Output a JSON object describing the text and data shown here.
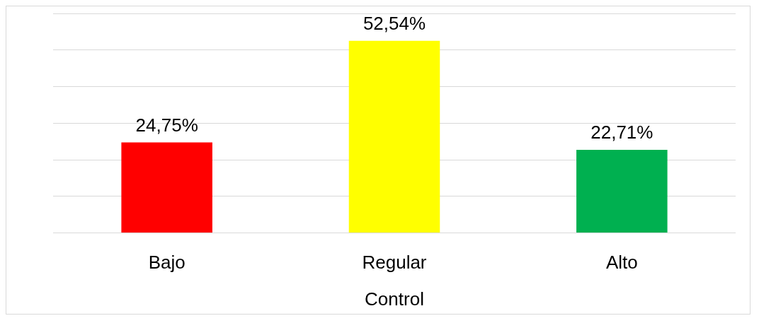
{
  "chart_data": {
    "type": "bar",
    "xlabel": "Control",
    "categories": [
      "Bajo",
      "Regular",
      "Alto"
    ],
    "values": [
      24.75,
      52.54,
      22.71
    ],
    "colors": [
      "#ff0000",
      "#ffff00",
      "#00b050"
    ],
    "value_labels": [
      "24,75%",
      "52,54%",
      "22,71%"
    ],
    "ylim": [
      0,
      60
    ],
    "yticks": [
      {
        "value": 0,
        "label": null
      },
      {
        "value": 10,
        "label": null
      },
      {
        "value": 20,
        "label": null
      },
      {
        "value": 30,
        "label": null
      },
      {
        "value": 40,
        "label": null
      },
      {
        "value": 50,
        "label": null
      },
      {
        "value": 60,
        "label": null
      }
    ],
    "grid": "y",
    "legend": false
  }
}
